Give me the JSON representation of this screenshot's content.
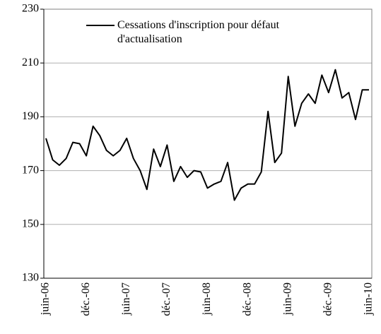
{
  "chart_data": {
    "type": "line",
    "categories": [
      "juin-06",
      null,
      null,
      null,
      null,
      null,
      "déc.-06",
      null,
      null,
      null,
      null,
      null,
      "juin-07",
      null,
      null,
      null,
      null,
      null,
      "déc.-07",
      null,
      null,
      null,
      null,
      null,
      "juin-08",
      null,
      null,
      null,
      null,
      null,
      "déc.-08",
      null,
      null,
      null,
      null,
      null,
      "juin-09",
      null,
      null,
      null,
      null,
      null,
      "déc.-09",
      null,
      null,
      null,
      null,
      null,
      "juin-10"
    ],
    "series": [
      {
        "name": "Cessations d'inscription pour défaut d'actualisation",
        "color": "#000000",
        "values": [
          182,
          174,
          172,
          174.5,
          180.5,
          180,
          175.5,
          186.5,
          183,
          177.5,
          175.5,
          177.5,
          182,
          174.5,
          170,
          163,
          178,
          171.5,
          179.5,
          166,
          171.5,
          167.5,
          170,
          169.5,
          163.5,
          165,
          166,
          173,
          159,
          163.5,
          165,
          165,
          169.5,
          192,
          173,
          176.5,
          205,
          186.5,
          195,
          198.5,
          195,
          205.5,
          199,
          207.5,
          197,
          199,
          189,
          200,
          200
        ]
      }
    ],
    "ylim": [
      130,
      230
    ],
    "yticks": [
      130,
      150,
      170,
      190,
      210,
      230
    ],
    "grid": true
  }
}
